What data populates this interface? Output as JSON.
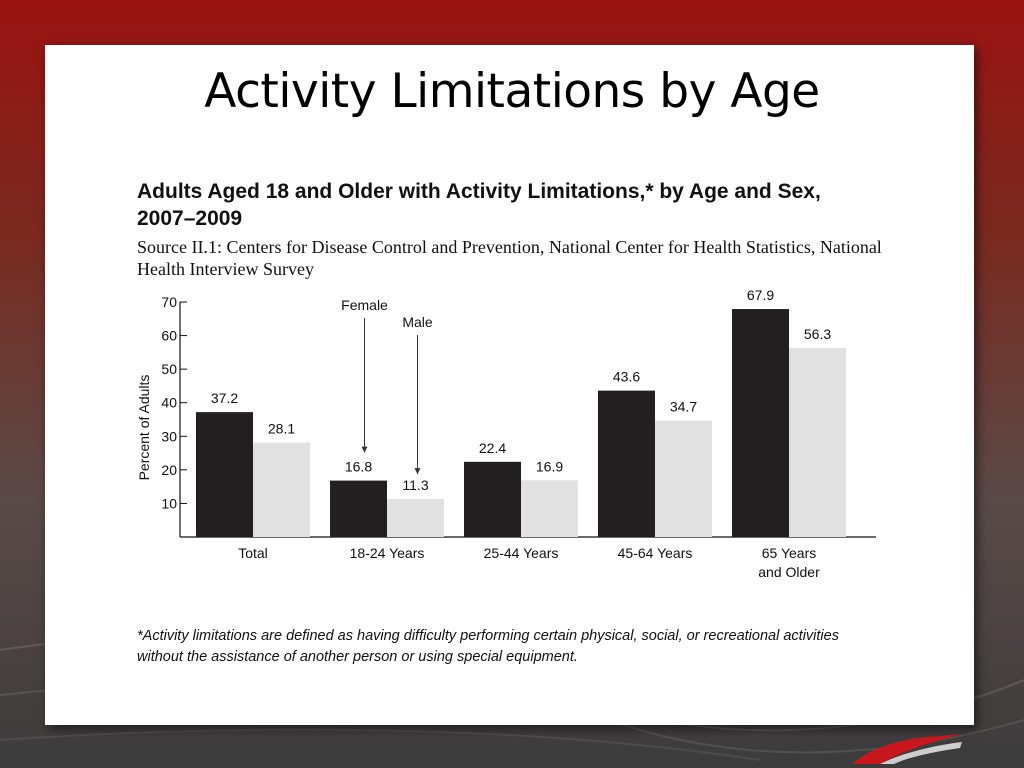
{
  "slide": {
    "title": "Activity Limitations by Age"
  },
  "figure": {
    "heading": "Adults Aged 18 and Older with Activity Limitations,* by Age and Sex, 2007–2009",
    "source": "Source II.1: Centers for Disease Control and Prevention, National Center for Health Statistics, National Health Interview Survey",
    "footnote": "*Activity limitations are defined as having difficulty performing certain physical, social, or recreational activities without the assistance of another person or using special equipment."
  },
  "chart_data": {
    "type": "bar",
    "title": "",
    "ylabel": "Percent of Adults",
    "xlabel": "",
    "ylim": [
      0,
      70
    ],
    "yticks": [
      10,
      20,
      30,
      40,
      50,
      60,
      70
    ],
    "grid": false,
    "categories": [
      "Total",
      "18-24 Years",
      "25-44 Years",
      "45-64 Years",
      "65 Years and Older"
    ],
    "category_lines": [
      [
        "Total"
      ],
      [
        "18-24 Years"
      ],
      [
        "25-44 Years"
      ],
      [
        "45-64 Years"
      ],
      [
        "65 Years",
        "and Older"
      ]
    ],
    "series": [
      {
        "name": "Female",
        "color": "#231f20",
        "values": [
          37.2,
          16.8,
          22.4,
          43.6,
          67.9
        ]
      },
      {
        "name": "Male",
        "color": "#e1e1e1",
        "values": [
          28.1,
          11.3,
          16.9,
          34.7,
          56.3
        ]
      }
    ],
    "annotations": [
      "Female",
      "Male"
    ]
  }
}
